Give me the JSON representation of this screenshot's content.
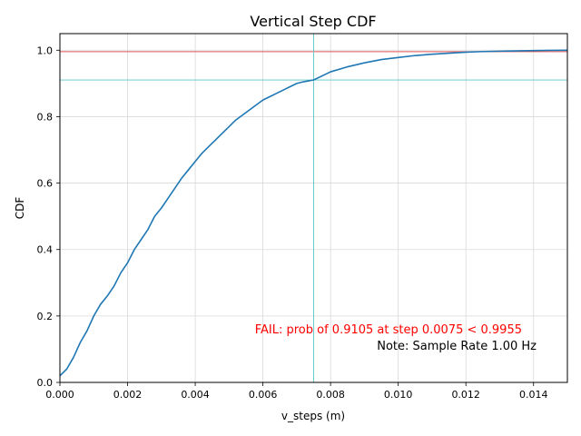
{
  "chart_data": {
    "type": "line",
    "title": "Vertical Step CDF",
    "xlabel": "v_steps (m)",
    "ylabel": "CDF",
    "xlim": [
      0,
      0.015
    ],
    "ylim": [
      0,
      1.05
    ],
    "grid": true,
    "x_ticks": [
      0,
      0.002,
      0.004,
      0.006,
      0.008,
      0.01,
      0.012,
      0.014
    ],
    "x_tick_labels": [
      "0.000",
      "0.002",
      "0.004",
      "0.006",
      "0.008",
      "0.010",
      "0.012",
      "0.014"
    ],
    "y_ticks": [
      0,
      0.2,
      0.4,
      0.6,
      0.8,
      1.0
    ],
    "y_tick_labels": [
      "0.0",
      "0.2",
      "0.4",
      "0.6",
      "0.8",
      "1.0"
    ],
    "series": [
      {
        "color": "#1f77b4",
        "x": [
          0,
          0.0002,
          0.0004,
          0.0006,
          0.0008,
          0.001,
          0.0012,
          0.0014,
          0.0016,
          0.0018,
          0.002,
          0.0022,
          0.0024,
          0.0026,
          0.0028,
          0.003,
          0.0032,
          0.0034,
          0.0036,
          0.0038,
          0.004,
          0.0042,
          0.0044,
          0.0046,
          0.0048,
          0.005,
          0.0052,
          0.0054,
          0.0056,
          0.0058,
          0.006,
          0.0062,
          0.0064,
          0.0066,
          0.0068,
          0.007,
          0.0072,
          0.0075,
          0.0078,
          0.008,
          0.0085,
          0.009,
          0.0095,
          0.01,
          0.0105,
          0.011,
          0.0115,
          0.012,
          0.0125,
          0.013,
          0.0135,
          0.014,
          0.0145,
          0.015
        ],
        "y": [
          0.02,
          0.04,
          0.075,
          0.12,
          0.155,
          0.2,
          0.235,
          0.26,
          0.29,
          0.33,
          0.36,
          0.4,
          0.43,
          0.46,
          0.5,
          0.525,
          0.555,
          0.585,
          0.615,
          0.64,
          0.665,
          0.69,
          0.71,
          0.73,
          0.75,
          0.77,
          0.79,
          0.805,
          0.82,
          0.835,
          0.85,
          0.86,
          0.87,
          0.88,
          0.89,
          0.9,
          0.905,
          0.9105,
          0.925,
          0.935,
          0.95,
          0.962,
          0.972,
          0.978,
          0.984,
          0.988,
          0.991,
          0.994,
          0.996,
          0.997,
          0.998,
          0.999,
          0.9995,
          1.0
        ]
      }
    ],
    "reference_lines": {
      "threshold_y": 0.9955,
      "threshold_color": "#e05252",
      "marker_x": 0.0075,
      "marker_y": 0.9105,
      "marker_color": "#5bc6c6"
    },
    "annotations": {
      "fail_text": "FAIL: prob of 0.9105 at step 0.0075 < 0.9955",
      "fail_color": "#ff0000",
      "note_text": "Note: Sample Rate 1.00 Hz"
    }
  }
}
